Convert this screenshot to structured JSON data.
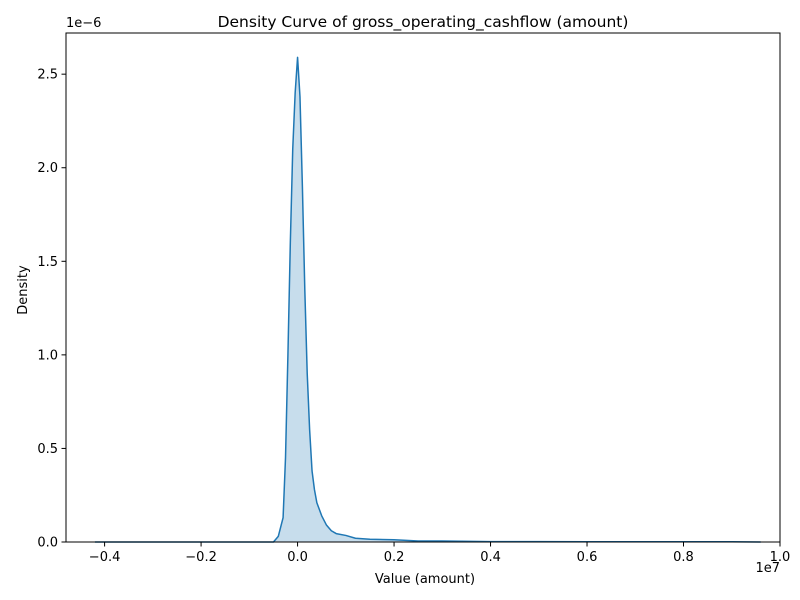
{
  "chart_data": {
    "type": "area",
    "title": "Density Curve of gross_operating_cashflow (amount)",
    "xlabel": "Value (amount)",
    "ylabel": "Density",
    "x_offset_text": "1e7",
    "y_offset_text": "1e−6",
    "xlim": [
      -0.48,
      1.0
    ],
    "ylim": [
      0,
      2.72
    ],
    "x_ticks": [
      {
        "value": -0.4,
        "label": "−0.4"
      },
      {
        "value": -0.2,
        "label": "−0.2"
      },
      {
        "value": 0.0,
        "label": "0.0"
      },
      {
        "value": 0.2,
        "label": "0.2"
      },
      {
        "value": 0.4,
        "label": "0.4"
      },
      {
        "value": 0.6,
        "label": "0.6"
      },
      {
        "value": 0.8,
        "label": "0.8"
      },
      {
        "value": 1.0,
        "label": "1.0"
      }
    ],
    "y_ticks": [
      {
        "value": 0.0,
        "label": "0.0"
      },
      {
        "value": 0.5,
        "label": "0.5"
      },
      {
        "value": 1.0,
        "label": "1.0"
      },
      {
        "value": 1.5,
        "label": "1.5"
      },
      {
        "value": 2.0,
        "label": "2.0"
      },
      {
        "value": 2.5,
        "label": "2.5"
      }
    ],
    "grid": false,
    "legend": "none",
    "line_color": "#1f77b4",
    "fill_color": "#1f77b4",
    "fill_opacity": 0.25,
    "series": [
      {
        "x": [
          -0.42,
          -0.3,
          -0.2,
          -0.1,
          -0.05,
          -0.04,
          -0.03,
          -0.025,
          -0.02,
          -0.015,
          -0.01,
          -0.005,
          0.0,
          0.005,
          0.01,
          0.015,
          0.02,
          0.025,
          0.03,
          0.035,
          0.04,
          0.05,
          0.06,
          0.07,
          0.08,
          0.1,
          0.12,
          0.15,
          0.2,
          0.25,
          0.3,
          0.4,
          0.5,
          0.6,
          0.7,
          0.8,
          0.9,
          0.96
        ],
        "y": [
          0.0,
          0.0,
          0.0,
          0.0,
          0.0,
          0.03,
          0.13,
          0.45,
          1.0,
          1.6,
          2.1,
          2.4,
          2.59,
          2.38,
          1.9,
          1.35,
          0.9,
          0.6,
          0.38,
          0.28,
          0.21,
          0.14,
          0.09,
          0.06,
          0.045,
          0.035,
          0.02,
          0.015,
          0.012,
          0.005,
          0.005,
          0.002,
          0.002,
          0.001,
          0.001,
          0.001,
          0.001,
          0.0
        ]
      }
    ]
  }
}
